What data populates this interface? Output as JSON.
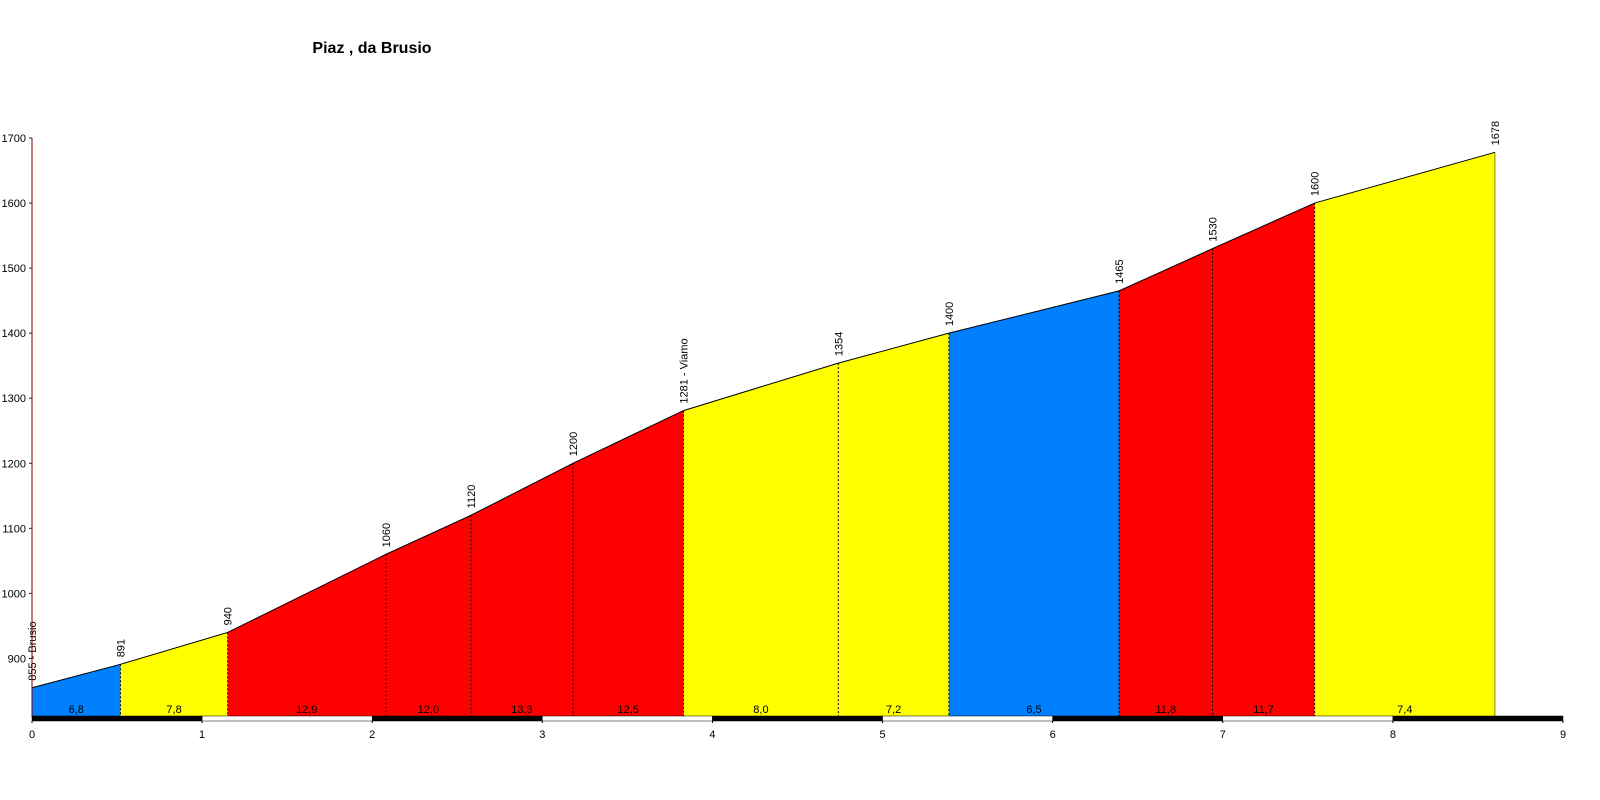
{
  "chart_data": {
    "type": "area",
    "title": "Piaz , da Brusio",
    "x": [
      0,
      0.52,
      1.15,
      2.08,
      2.58,
      3.18,
      3.83,
      4.74,
      5.39,
      6.39,
      6.94,
      7.54,
      8.6
    ],
    "values": [
      855,
      891,
      940,
      1060,
      1120,
      1200,
      1281,
      1354,
      1400,
      1465,
      1530,
      1600,
      1678
    ],
    "value_labels": [
      "855 - Brusio",
      "891",
      "940",
      "1060",
      "1120",
      "1200",
      "1281 - Viamo",
      "1354",
      "1400",
      "1465",
      "1530",
      "1600",
      "1678"
    ],
    "gradient_labels": [
      "6,8",
      "7,8",
      "12,9",
      "12,0",
      "13,3",
      "12,5",
      "8,0",
      "7,2",
      "6,5",
      "11,8",
      "11,7",
      "7,4"
    ],
    "segment_colors": [
      "#0080ff",
      "#ffff00",
      "#ff0000",
      "#ff0000",
      "#ff0000",
      "#ff0000",
      "#ffff00",
      "#ffff00",
      "#0080ff",
      "#ff0000",
      "#ff0000",
      "#ffff00"
    ],
    "xlim": [
      0,
      9
    ],
    "xticks": [
      0,
      1,
      2,
      3,
      4,
      5,
      6,
      7,
      8,
      9
    ],
    "ylim": [
      810,
      1700
    ],
    "yticks": [
      900,
      1000,
      1100,
      1200,
      1300,
      1400,
      1500,
      1600,
      1700
    ]
  }
}
